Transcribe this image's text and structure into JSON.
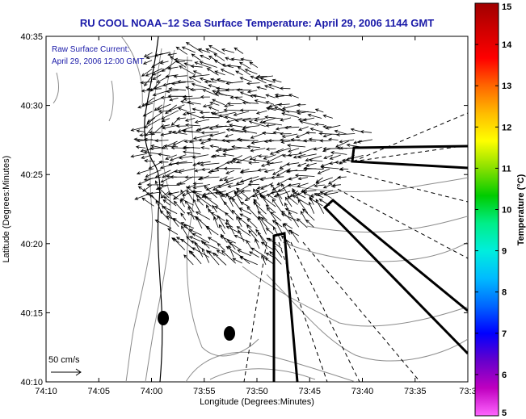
{
  "title": "RU COOL  NOAA–12  Sea Surface Temperature:  April 29, 2006 1144 GMT",
  "annotation": {
    "line1": "Raw Surface Current:",
    "line2": "April 29, 2006 12:00 GMT"
  },
  "scale_label": "50 cm/s",
  "axes": {
    "xlabel": "Longitude (Degrees:Minutes)",
    "ylabel": "Latitude (Degrees:Minutes)",
    "x_ticks": [
      "74:10",
      "74:05",
      "74:00",
      "73:55",
      "73:50",
      "73:45",
      "73:40",
      "73:35",
      "73:3"
    ],
    "y_ticks": [
      "40:35",
      "40:30",
      "40:25",
      "40:20",
      "40:15",
      "40:10"
    ]
  },
  "colorbar": {
    "label": "Temperature (°C)",
    "ticks": [
      "15",
      "14",
      "13",
      "12",
      "11",
      "10",
      "9",
      "8",
      "7",
      "6",
      "5"
    ],
    "min": 5,
    "max": 15,
    "colors": [
      "#ff66ff",
      "#c000c0",
      "#6600cc",
      "#0000ff",
      "#0066ff",
      "#00bbff",
      "#00eedd",
      "#00ee88",
      "#00cc00",
      "#88e000",
      "#ffff00",
      "#ffbb00",
      "#ff6600",
      "#ff0000",
      "#d00000",
      "#a00000"
    ]
  }
}
